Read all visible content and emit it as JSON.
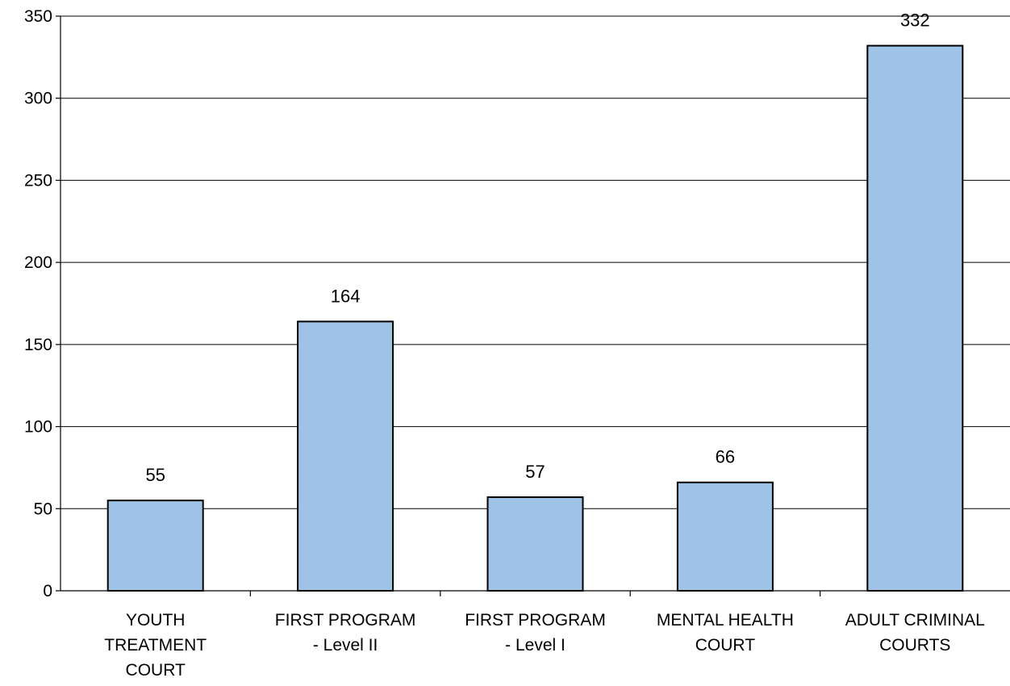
{
  "chart_data": {
    "type": "bar",
    "title": "",
    "xlabel": "",
    "ylabel": "",
    "categories": [
      [
        "YOUTH",
        "TREATMENT",
        "COURT"
      ],
      [
        "FIRST PROGRAM",
        "- Level II"
      ],
      [
        "FIRST PROGRAM",
        "- Level I"
      ],
      [
        "MENTAL HEALTH",
        "COURT"
      ],
      [
        "ADULT CRIMINAL",
        "COURTS"
      ]
    ],
    "values": [
      55,
      164,
      57,
      66,
      332
    ],
    "data_labels": [
      "55",
      "164",
      "57",
      "66",
      "332"
    ],
    "ylim": [
      0,
      350
    ],
    "y_ticks": [
      0,
      50,
      100,
      150,
      200,
      250,
      300,
      350
    ],
    "y_tick_labels": [
      "0",
      "50",
      "100",
      "150",
      "200",
      "250",
      "300",
      "350"
    ],
    "grid": true,
    "legend": "none",
    "colors": {
      "bar_fill": "#9ec3e6",
      "bar_stroke": "#000000",
      "grid": "#000000"
    }
  }
}
